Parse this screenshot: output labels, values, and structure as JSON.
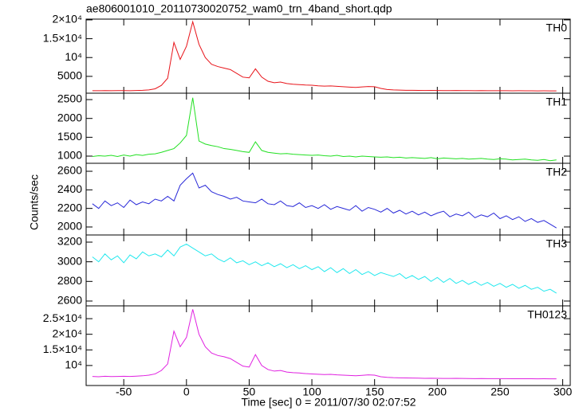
{
  "chart_data": [
    {
      "type": "line",
      "title": "ae806001010_20110730020752_wam0_trn_4band_short.qdp",
      "x": [
        -75,
        -70,
        -65,
        -60,
        -55,
        -50,
        -45,
        -40,
        -35,
        -30,
        -25,
        -20,
        -15,
        -10,
        -5,
        0,
        5,
        10,
        15,
        20,
        25,
        30,
        35,
        40,
        45,
        50,
        55,
        60,
        65,
        70,
        75,
        80,
        85,
        90,
        95,
        100,
        105,
        110,
        115,
        120,
        125,
        130,
        135,
        140,
        145,
        150,
        155,
        160,
        165,
        170,
        175,
        180,
        185,
        190,
        195,
        200,
        205,
        210,
        215,
        220,
        225,
        230,
        235,
        240,
        245,
        250,
        255,
        260,
        265,
        270,
        275,
        280,
        285,
        290,
        295
      ],
      "series": [
        {
          "name": "TH0",
          "color": "#e8141a",
          "values": [
            1200,
            1180,
            1220,
            1190,
            1210,
            1230,
            1200,
            1250,
            1300,
            1400,
            1700,
            2600,
            4500,
            14000,
            9500,
            13000,
            19500,
            13500,
            10000,
            8200,
            7600,
            7200,
            6800,
            5800,
            4800,
            4600,
            7000,
            4800,
            3700,
            3300,
            3500,
            3100,
            2900,
            2800,
            2700,
            2650,
            2500,
            2400,
            2450,
            2350,
            2250,
            2150,
            2050,
            2200,
            2300,
            2250,
            1800,
            1500,
            1400,
            1350,
            1300,
            1300,
            1280,
            1250,
            1260,
            1240,
            1230,
            1220,
            1250,
            1230,
            1210,
            1200,
            1220,
            1190,
            1200,
            1180,
            1190,
            1170,
            1180,
            1160,
            1170,
            1150,
            1160,
            1140,
            1150
          ]
        }
      ],
      "xlim": [
        -80,
        306
      ],
      "xticks": [
        -50,
        0,
        50,
        100,
        150,
        200,
        250,
        300
      ],
      "ylim": [
        530,
        20200
      ],
      "yticks": [
        5000,
        {
          "value": 10000,
          "label": "10⁴"
        },
        {
          "value": 15000,
          "label": "1.5×10⁴"
        },
        {
          "value": 20000,
          "label": "2×10⁴"
        }
      ]
    },
    {
      "type": "line",
      "x": [
        -75,
        -70,
        -65,
        -60,
        -55,
        -50,
        -45,
        -40,
        -35,
        -30,
        -25,
        -20,
        -15,
        -10,
        -5,
        0,
        5,
        10,
        15,
        20,
        25,
        30,
        35,
        40,
        45,
        50,
        55,
        60,
        65,
        70,
        75,
        80,
        85,
        90,
        95,
        100,
        105,
        110,
        115,
        120,
        125,
        130,
        135,
        140,
        145,
        150,
        155,
        160,
        165,
        170,
        175,
        180,
        185,
        190,
        195,
        200,
        205,
        210,
        215,
        220,
        225,
        230,
        235,
        240,
        245,
        250,
        255,
        260,
        265,
        270,
        275,
        280,
        285,
        290,
        295
      ],
      "series": [
        {
          "name": "TH1",
          "color": "#22e022",
          "values": [
            990,
            1010,
            1000,
            1020,
            990,
            1030,
            1000,
            1040,
            1020,
            1050,
            1060,
            1100,
            1150,
            1200,
            1350,
            1550,
            2550,
            1400,
            1320,
            1280,
            1250,
            1200,
            1180,
            1150,
            1120,
            1100,
            1380,
            1150,
            1100,
            1080,
            1060,
            1070,
            1050,
            1040,
            1030,
            1020,
            1030,
            1010,
            1000,
            1020,
            990,
            1000,
            980,
            1000,
            990,
            980,
            970,
            980,
            960,
            970,
            950,
            960,
            950,
            940,
            960,
            930,
            950,
            940,
            930,
            940,
            920,
            930,
            940,
            920,
            910,
            930,
            920,
            900,
            910,
            920,
            900,
            890,
            910,
            880,
            900
          ]
        }
      ],
      "xlim": [
        -80,
        306
      ],
      "xticks": [
        -50,
        0,
        50,
        100,
        150,
        200,
        250,
        300
      ],
      "ylim": [
        810,
        2670
      ],
      "yticks": [
        1000,
        1500,
        2000,
        2500
      ]
    },
    {
      "type": "line",
      "ylabel": "Counts/sec",
      "x": [
        -75,
        -70,
        -65,
        -60,
        -55,
        -50,
        -45,
        -40,
        -35,
        -30,
        -25,
        -20,
        -15,
        -10,
        -5,
        0,
        5,
        10,
        15,
        20,
        25,
        30,
        35,
        40,
        45,
        50,
        55,
        60,
        65,
        70,
        75,
        80,
        85,
        90,
        95,
        100,
        105,
        110,
        115,
        120,
        125,
        130,
        135,
        140,
        145,
        150,
        155,
        160,
        165,
        170,
        175,
        180,
        185,
        190,
        195,
        200,
        205,
        210,
        215,
        220,
        225,
        230,
        235,
        240,
        245,
        250,
        255,
        260,
        265,
        270,
        275,
        280,
        285,
        290,
        295
      ],
      "series": [
        {
          "name": "TH2",
          "color": "#2828d8",
          "values": [
            2250,
            2200,
            2280,
            2230,
            2260,
            2210,
            2290,
            2240,
            2270,
            2250,
            2300,
            2280,
            2330,
            2280,
            2450,
            2520,
            2580,
            2420,
            2450,
            2380,
            2350,
            2330,
            2300,
            2320,
            2280,
            2270,
            2260,
            2300,
            2250,
            2240,
            2280,
            2230,
            2220,
            2260,
            2210,
            2230,
            2200,
            2240,
            2190,
            2220,
            2200,
            2180,
            2230,
            2170,
            2210,
            2190,
            2160,
            2200,
            2150,
            2180,
            2140,
            2170,
            2130,
            2160,
            2120,
            2150,
            2170,
            2110,
            2140,
            2120,
            2160,
            2100,
            2130,
            2110,
            2150,
            2090,
            2120,
            2080,
            2110,
            2060,
            2090,
            2050,
            2070,
            2030,
            1990
          ]
        }
      ],
      "xlim": [
        -80,
        306
      ],
      "xticks": [
        -50,
        0,
        50,
        100,
        150,
        200,
        250,
        300
      ],
      "ylim": [
        1914,
        2686
      ],
      "yticks": [
        2000,
        2200,
        2400,
        2600
      ]
    },
    {
      "type": "line",
      "x": [
        -75,
        -70,
        -65,
        -60,
        -55,
        -50,
        -45,
        -40,
        -35,
        -30,
        -25,
        -20,
        -15,
        -10,
        -5,
        0,
        5,
        10,
        15,
        20,
        25,
        30,
        35,
        40,
        45,
        50,
        55,
        60,
        65,
        70,
        75,
        80,
        85,
        90,
        95,
        100,
        105,
        110,
        115,
        120,
        125,
        130,
        135,
        140,
        145,
        150,
        155,
        160,
        165,
        170,
        175,
        180,
        185,
        190,
        195,
        200,
        205,
        210,
        215,
        220,
        225,
        230,
        235,
        240,
        245,
        250,
        255,
        260,
        265,
        270,
        275,
        280,
        285,
        290,
        295
      ],
      "series": [
        {
          "name": "TH3",
          "color": "#22e8ee",
          "values": [
            3050,
            3000,
            3080,
            3020,
            3060,
            2990,
            3070,
            3030,
            3100,
            3060,
            3080,
            3050,
            3120,
            3060,
            3150,
            3180,
            3140,
            3100,
            3060,
            3080,
            3030,
            3000,
            3040,
            2990,
            3010,
            2970,
            3000,
            2960,
            2990,
            2950,
            2980,
            2940,
            2970,
            2930,
            2960,
            2920,
            2950,
            2900,
            2940,
            2890,
            2930,
            2880,
            2920,
            2870,
            2900,
            2860,
            2890,
            2870,
            2850,
            2880,
            2830,
            2860,
            2820,
            2850,
            2800,
            2840,
            2790,
            2830,
            2780,
            2810,
            2770,
            2800,
            2760,
            2790,
            2750,
            2780,
            2740,
            2770,
            2730,
            2760,
            2720,
            2740,
            2700,
            2720,
            2680
          ]
        }
      ],
      "xlim": [
        -80,
        306
      ],
      "xticks": [
        -50,
        0,
        50,
        100,
        150,
        200,
        250,
        300
      ],
      "ylim": [
        2551,
        3273
      ],
      "yticks": [
        2600,
        2800,
        3000,
        3200
      ]
    },
    {
      "type": "line",
      "xlabel": "Time [sec] 0 = 2011/07/30 02:07:52",
      "x": [
        -75,
        -70,
        -65,
        -60,
        -55,
        -50,
        -45,
        -40,
        -35,
        -30,
        -25,
        -20,
        -15,
        -10,
        -5,
        0,
        5,
        10,
        15,
        20,
        25,
        30,
        35,
        40,
        45,
        50,
        55,
        60,
        65,
        70,
        75,
        80,
        85,
        90,
        95,
        100,
        105,
        110,
        115,
        120,
        125,
        130,
        135,
        140,
        145,
        150,
        155,
        160,
        165,
        170,
        175,
        180,
        185,
        190,
        195,
        200,
        205,
        210,
        215,
        220,
        225,
        230,
        235,
        240,
        245,
        250,
        255,
        260,
        265,
        270,
        275,
        280,
        285,
        290,
        295
      ],
      "series": [
        {
          "name": "TH0123",
          "color": "#e020e0",
          "values": [
            6500,
            6400,
            6550,
            6450,
            6500,
            6550,
            6480,
            6600,
            6700,
            6900,
            7300,
            8400,
            10500,
            21000,
            16000,
            19000,
            28000,
            20000,
            16000,
            14000,
            13200,
            12800,
            12200,
            11000,
            9800,
            9500,
            13500,
            10000,
            8700,
            8200,
            8400,
            7900,
            7700,
            7600,
            7400,
            7300,
            7200,
            7100,
            7150,
            7000,
            6900,
            6800,
            6700,
            6850,
            7000,
            6900,
            6400,
            6200,
            6100,
            6050,
            6000,
            5980,
            5950,
            5900,
            5920,
            5880,
            5860,
            5850,
            5870,
            5840,
            5820,
            5800,
            5830,
            5790,
            5800,
            5780,
            5790,
            5760,
            5770,
            5750,
            5760,
            5740,
            5750,
            5720,
            5730
          ]
        }
      ],
      "xlim": [
        -80,
        306
      ],
      "xticks": [
        -50,
        0,
        50,
        100,
        150,
        200,
        250,
        300
      ],
      "ylim": [
        3590,
        29100
      ],
      "yticks": [
        {
          "value": 10000,
          "label": "10⁴"
        },
        {
          "value": 15000,
          "label": "1.5×10⁴"
        },
        {
          "value": 20000,
          "label": "2×10⁴"
        },
        {
          "value": 25000,
          "label": "2.5×10⁴"
        }
      ]
    }
  ]
}
